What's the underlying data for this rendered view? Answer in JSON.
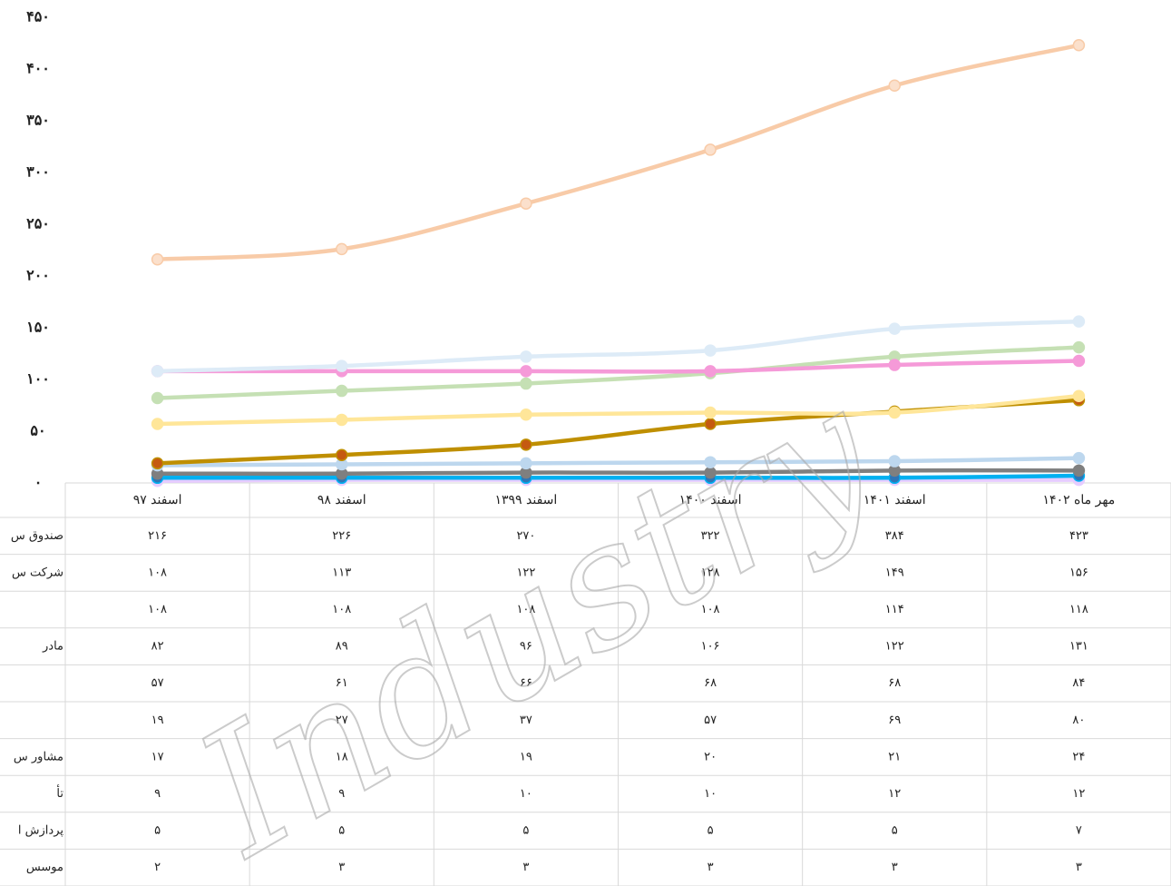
{
  "chart_data": {
    "type": "line",
    "watermark": "Industry",
    "categories": [
      "اسفند ۹۷",
      "اسفند ۹۸",
      "اسفند ۱۳۹۹",
      "اسفند ۱۴۰۰",
      "اسفند ۱۴۰۱",
      "مهر ماه ۱۴۰۲"
    ],
    "ylim": [
      0,
      450
    ],
    "yticks": [
      {
        "value": 0,
        "label": "۰"
      },
      {
        "value": 50,
        "label": "۵۰"
      },
      {
        "value": 100,
        "label": "۱۰۰"
      },
      {
        "value": 150,
        "label": "۱۵۰"
      },
      {
        "value": 200,
        "label": "۲۰۰"
      },
      {
        "value": 250,
        "label": "۲۵۰"
      },
      {
        "value": 300,
        "label": "۳۰۰"
      },
      {
        "value": 350,
        "label": "۳۵۰"
      },
      {
        "value": 400,
        "label": "۴۰۰"
      },
      {
        "value": 450,
        "label": "۴۵۰"
      }
    ],
    "series": [
      {
        "name": "صندوق س",
        "color": "#f8cba8",
        "marker": "#fbe0cc",
        "values": [
          216,
          226,
          270,
          322,
          384,
          423
        ],
        "value_labels": [
          "۲۱۶",
          "۲۲۶",
          "۲۷۰",
          "۳۲۲",
          "۳۸۴",
          "۴۲۳"
        ]
      },
      {
        "name": "شرکت س",
        "color": "#ddebf7",
        "marker": "#ddebf7",
        "values": [
          108,
          113,
          122,
          128,
          149,
          156
        ],
        "value_labels": [
          "۱۰۸",
          "۱۱۳",
          "۱۲۲",
          "۱۲۸",
          "۱۴۹",
          "۱۵۶"
        ]
      },
      {
        "name": null,
        "color": "#f59ad8",
        "marker": "#f59ad8",
        "values": [
          108,
          108,
          108,
          108,
          114,
          118
        ],
        "value_labels": [
          "۱۰۸",
          "۱۰۸",
          "۱۰۸",
          "۱۰۸",
          "۱۱۴",
          "۱۱۸"
        ]
      },
      {
        "name": "مادر",
        "color": "#c5e0b4",
        "marker": "#c5e0b4",
        "values": [
          82,
          89,
          96,
          106,
          122,
          131
        ],
        "value_labels": [
          "۸۲",
          "۸۹",
          "۹۶",
          "۱۰۶",
          "۱۲۲",
          "۱۳۱"
        ]
      },
      {
        "name": null,
        "color": "#ffe699",
        "marker": "#ffe699",
        "values": [
          57,
          61,
          66,
          68,
          68,
          84
        ],
        "value_labels": [
          "۵۷",
          "۶۱",
          "۶۶",
          "۶۸",
          "۶۸",
          "۸۴"
        ]
      },
      {
        "name": null,
        "color": "#bf8f00",
        "marker": "#c55a11",
        "values": [
          19,
          27,
          37,
          57,
          69,
          80
        ],
        "value_labels": [
          "۱۹",
          "۲۷",
          "۳۷",
          "۵۷",
          "۶۹",
          "۸۰"
        ]
      },
      {
        "name": "مشاور س",
        "color": "#bdd7ee",
        "marker": "#bdd7ee",
        "values": [
          17,
          18,
          19,
          20,
          21,
          24
        ],
        "value_labels": [
          "۱۷",
          "۱۸",
          "۱۹",
          "۲۰",
          "۲۱",
          "۲۴"
        ]
      },
      {
        "name": "تأ",
        "color": "#7f7f7f",
        "marker": "#7f7f7f",
        "values": [
          9,
          9,
          10,
          10,
          12,
          12
        ],
        "value_labels": [
          "۹",
          "۹",
          "۱۰",
          "۱۰",
          "۱۲",
          "۱۲"
        ]
      },
      {
        "name": "پردازش ا",
        "color": "#00b0f0",
        "marker": "#2e75b6",
        "values": [
          5,
          5,
          5,
          5,
          5,
          7
        ],
        "value_labels": [
          "۵",
          "۵",
          "۵",
          "۵",
          "۵",
          "۷"
        ]
      },
      {
        "name": "موسس",
        "color": "#e6ccff",
        "marker": "#e6ccff",
        "values": [
          2,
          3,
          3,
          3,
          3,
          3
        ],
        "value_labels": [
          "۲",
          "۳",
          "۳",
          "۳",
          "۳",
          "۳"
        ]
      }
    ]
  }
}
